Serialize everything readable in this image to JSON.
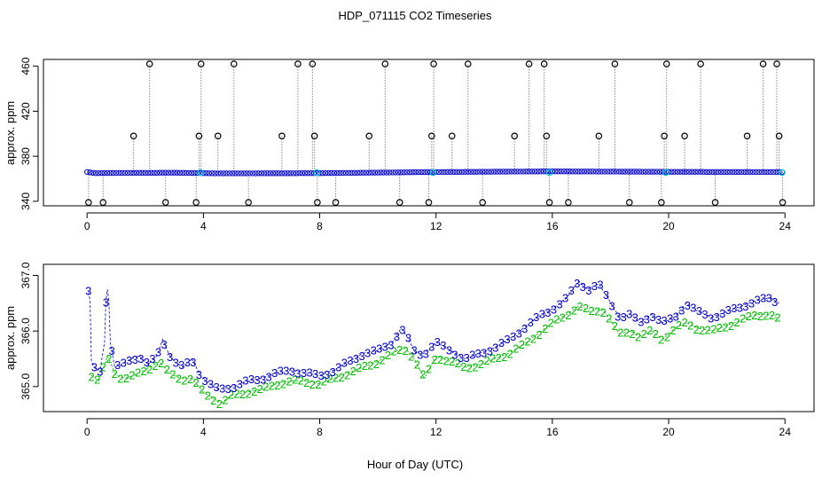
{
  "figure": {
    "title": "HDP_071115  CO2 Timeseries",
    "xlabel": "Hour of Day (UTC)"
  },
  "colors": {
    "axis": "#000000",
    "outlier_marker": "#000000",
    "main_series": "#0000cc",
    "highlight": "#00cccc",
    "series_2": "#00bb00",
    "series_3": "#0000cc",
    "drop_line": "#888888"
  },
  "chart_data": [
    {
      "type": "scatter",
      "ylabel": "approx. ppm",
      "xlim": [
        -1.5,
        25
      ],
      "ylim": [
        336,
        466
      ],
      "xticks": [
        0,
        4,
        8,
        12,
        16,
        20,
        24
      ],
      "yticks": [
        340,
        380,
        420,
        460
      ],
      "baseline": [
        [
          0.0,
          366.0
        ],
        [
          0.3,
          365.0
        ],
        [
          1.0,
          365.2
        ],
        [
          3.0,
          365.4
        ],
        [
          4.5,
          364.8
        ],
        [
          8.0,
          365.0
        ],
        [
          12.0,
          366.0
        ],
        [
          16.0,
          366.6
        ],
        [
          20.0,
          366.2
        ],
        [
          24.0,
          366.0
        ]
      ],
      "highlight_points": [
        [
          3.9,
          365.5
        ],
        [
          7.9,
          365.5
        ],
        [
          11.9,
          365.5
        ],
        [
          15.9,
          365.5
        ],
        [
          19.9,
          365.5
        ],
        [
          23.9,
          365.5
        ]
      ],
      "outliers": [
        [
          0.05,
          339
        ],
        [
          0.55,
          339
        ],
        [
          1.6,
          398
        ],
        [
          2.15,
          462
        ],
        [
          2.7,
          339
        ],
        [
          3.75,
          339
        ],
        [
          3.85,
          398
        ],
        [
          3.92,
          462
        ],
        [
          4.5,
          398
        ],
        [
          5.05,
          462
        ],
        [
          5.55,
          339
        ],
        [
          6.7,
          398
        ],
        [
          7.25,
          462
        ],
        [
          7.75,
          462
        ],
        [
          7.82,
          398
        ],
        [
          7.92,
          339
        ],
        [
          8.55,
          339
        ],
        [
          9.7,
          398
        ],
        [
          10.25,
          462
        ],
        [
          10.75,
          339
        ],
        [
          11.75,
          339
        ],
        [
          11.85,
          398
        ],
        [
          11.92,
          462
        ],
        [
          12.55,
          398
        ],
        [
          13.1,
          462
        ],
        [
          13.6,
          339
        ],
        [
          14.7,
          398
        ],
        [
          15.2,
          462
        ],
        [
          15.72,
          462
        ],
        [
          15.8,
          398
        ],
        [
          15.9,
          339
        ],
        [
          16.55,
          339
        ],
        [
          17.6,
          398
        ],
        [
          18.15,
          462
        ],
        [
          18.65,
          339
        ],
        [
          19.75,
          339
        ],
        [
          19.85,
          398
        ],
        [
          19.93,
          462
        ],
        [
          20.55,
          398
        ],
        [
          21.1,
          462
        ],
        [
          21.6,
          339
        ],
        [
          22.7,
          398
        ],
        [
          23.25,
          462
        ],
        [
          23.72,
          462
        ],
        [
          23.8,
          398
        ],
        [
          23.92,
          339
        ]
      ]
    },
    {
      "type": "scatter",
      "ylabel": "approx. ppm",
      "xlim": [
        -1.5,
        25
      ],
      "ylim": [
        364.55,
        367.2
      ],
      "xticks": [
        0,
        4,
        8,
        12,
        16,
        20,
        24
      ],
      "yticks": [
        365.0,
        366.0,
        367.0
      ],
      "ytick_labels": [
        "365.0",
        "366.0",
        "367.0"
      ],
      "series": [
        {
          "marker": "3",
          "points": [
            [
              0.05,
              366.7
            ],
            [
              0.1,
              366.55
            ],
            [
              0.15,
              365.45
            ],
            [
              0.3,
              365.3
            ],
            [
              0.45,
              365.3
            ],
            [
              0.6,
              365.8
            ],
            [
              0.65,
              366.55
            ],
            [
              0.7,
              366.75
            ],
            [
              0.75,
              366.55
            ],
            [
              0.8,
              365.8
            ],
            [
              0.95,
              365.35
            ],
            [
              1.2,
              365.4
            ],
            [
              1.5,
              365.5
            ],
            [
              1.8,
              365.55
            ],
            [
              2.1,
              365.4
            ],
            [
              2.4,
              365.55
            ],
            [
              2.6,
              365.85
            ],
            [
              2.8,
              365.6
            ],
            [
              3.0,
              365.45
            ],
            [
              3.3,
              365.35
            ],
            [
              3.6,
              365.5
            ],
            [
              3.9,
              365.2
            ],
            [
              4.2,
              365.05
            ],
            [
              4.5,
              364.95
            ],
            [
              5.0,
              365.0
            ],
            [
              5.5,
              365.1
            ],
            [
              6.0,
              365.15
            ],
            [
              6.5,
              365.25
            ],
            [
              7.0,
              365.3
            ],
            [
              7.5,
              365.25
            ],
            [
              8.0,
              365.2
            ],
            [
              8.5,
              365.3
            ],
            [
              9.0,
              365.45
            ],
            [
              9.5,
              365.6
            ],
            [
              10.0,
              365.65
            ],
            [
              10.5,
              365.8
            ],
            [
              10.8,
              366.05
            ],
            [
              11.0,
              365.9
            ],
            [
              11.3,
              365.6
            ],
            [
              11.6,
              365.6
            ],
            [
              12.0,
              365.8
            ],
            [
              12.5,
              365.65
            ],
            [
              13.0,
              365.5
            ],
            [
              13.5,
              365.6
            ],
            [
              14.0,
              365.7
            ],
            [
              14.5,
              365.85
            ],
            [
              15.0,
              366.05
            ],
            [
              15.5,
              366.25
            ],
            [
              16.0,
              366.4
            ],
            [
              16.5,
              366.6
            ],
            [
              16.9,
              366.9
            ],
            [
              17.2,
              366.75
            ],
            [
              17.6,
              366.85
            ],
            [
              17.9,
              366.6
            ],
            [
              18.3,
              366.25
            ],
            [
              18.7,
              366.3
            ],
            [
              19.0,
              366.15
            ],
            [
              19.4,
              366.3
            ],
            [
              19.8,
              366.15
            ],
            [
              20.2,
              366.25
            ],
            [
              20.6,
              366.5
            ],
            [
              21.0,
              366.35
            ],
            [
              21.5,
              366.25
            ],
            [
              22.0,
              366.35
            ],
            [
              22.5,
              366.45
            ],
            [
              23.0,
              366.55
            ],
            [
              23.5,
              366.6
            ],
            [
              23.8,
              366.5
            ]
          ]
        },
        {
          "marker": "2",
          "points": [
            [
              0.15,
              365.2
            ],
            [
              0.4,
              365.1
            ],
            [
              0.7,
              365.55
            ],
            [
              1.0,
              365.2
            ],
            [
              1.3,
              365.15
            ],
            [
              1.6,
              365.2
            ],
            [
              2.0,
              365.3
            ],
            [
              2.5,
              365.45
            ],
            [
              2.8,
              365.25
            ],
            [
              3.2,
              365.15
            ],
            [
              3.6,
              365.15
            ],
            [
              4.0,
              364.9
            ],
            [
              4.3,
              364.8
            ],
            [
              4.6,
              364.7
            ],
            [
              5.0,
              364.85
            ],
            [
              5.5,
              364.9
            ],
            [
              6.0,
              364.95
            ],
            [
              6.5,
              365.05
            ],
            [
              7.0,
              365.1
            ],
            [
              7.5,
              365.1
            ],
            [
              8.0,
              365.05
            ],
            [
              8.5,
              365.15
            ],
            [
              9.0,
              365.25
            ],
            [
              9.5,
              365.35
            ],
            [
              10.0,
              365.45
            ],
            [
              10.5,
              365.6
            ],
            [
              10.9,
              365.7
            ],
            [
              11.2,
              365.55
            ],
            [
              11.6,
              365.15
            ],
            [
              12.0,
              365.55
            ],
            [
              12.5,
              365.45
            ],
            [
              13.0,
              365.35
            ],
            [
              13.5,
              365.4
            ],
            [
              14.0,
              365.5
            ],
            [
              14.5,
              365.6
            ],
            [
              15.0,
              365.75
            ],
            [
              15.5,
              365.95
            ],
            [
              16.0,
              366.15
            ],
            [
              16.5,
              366.3
            ],
            [
              16.9,
              366.45
            ],
            [
              17.3,
              366.35
            ],
            [
              17.7,
              366.4
            ],
            [
              18.0,
              366.2
            ],
            [
              18.3,
              365.95
            ],
            [
              18.7,
              366.0
            ],
            [
              19.0,
              365.9
            ],
            [
              19.4,
              366.0
            ],
            [
              19.8,
              365.85
            ],
            [
              20.2,
              366.05
            ],
            [
              20.6,
              366.15
            ],
            [
              21.0,
              366.05
            ],
            [
              21.5,
              366.0
            ],
            [
              22.0,
              366.1
            ],
            [
              22.5,
              366.2
            ],
            [
              23.0,
              366.3
            ],
            [
              23.5,
              366.3
            ],
            [
              23.8,
              366.2
            ]
          ]
        }
      ]
    }
  ]
}
